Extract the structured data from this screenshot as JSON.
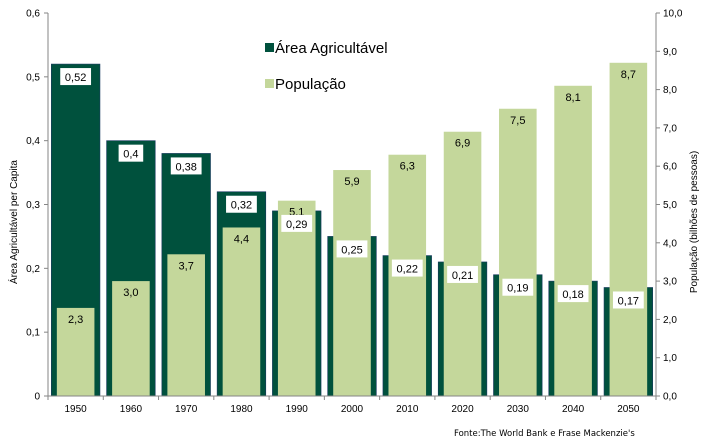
{
  "chart_data": {
    "type": "bar",
    "title": "",
    "categories": [
      "1950",
      "1960",
      "1970",
      "1980",
      "1990",
      "2000",
      "2010",
      "2020",
      "2030",
      "2040",
      "2050"
    ],
    "series": [
      {
        "name": "Área Agricultável",
        "axis": "left",
        "color": "#00513D",
        "values": [
          0.52,
          0.4,
          0.38,
          0.32,
          0.29,
          0.25,
          0.22,
          0.21,
          0.19,
          0.18,
          0.17
        ],
        "labels": [
          "0,52",
          "0,4",
          "0,38",
          "0,32",
          "0,29",
          "0,25",
          "0,22",
          "0,21",
          "0,19",
          "0,18",
          "0,17"
        ]
      },
      {
        "name": "População",
        "axis": "right",
        "color": "#C4D79B",
        "values": [
          2.3,
          3.0,
          3.7,
          4.4,
          5.1,
          5.9,
          6.3,
          6.9,
          7.5,
          8.1,
          8.7
        ],
        "labels": [
          "2,3",
          "3,0",
          "3,7",
          "4,4",
          "5,1",
          "5,9",
          "6,3",
          "6,9",
          "7,5",
          "8,1",
          "8,7"
        ]
      }
    ],
    "ylabel": "Área Agricultável per Capita",
    "y2label": "População (bilhões de pessoas)",
    "xlabel": "",
    "ylim": [
      0,
      0.6
    ],
    "y2lim": [
      0,
      10
    ],
    "yticks": [
      "0",
      "0,1",
      "0,2",
      "0,3",
      "0,4",
      "0,5",
      "0,6"
    ],
    "y2ticks": [
      "0,0",
      "1,0",
      "2,0",
      "3,0",
      "4,0",
      "5,0",
      "6,0",
      "7,0",
      "8,0",
      "9,0",
      "10,0"
    ],
    "grid": false,
    "legend": {
      "placement": "top-center",
      "entries": [
        "Área Agricultável",
        "População"
      ]
    },
    "annotation": "Fonte:The World Bank e  Frase Mackenzie's"
  }
}
